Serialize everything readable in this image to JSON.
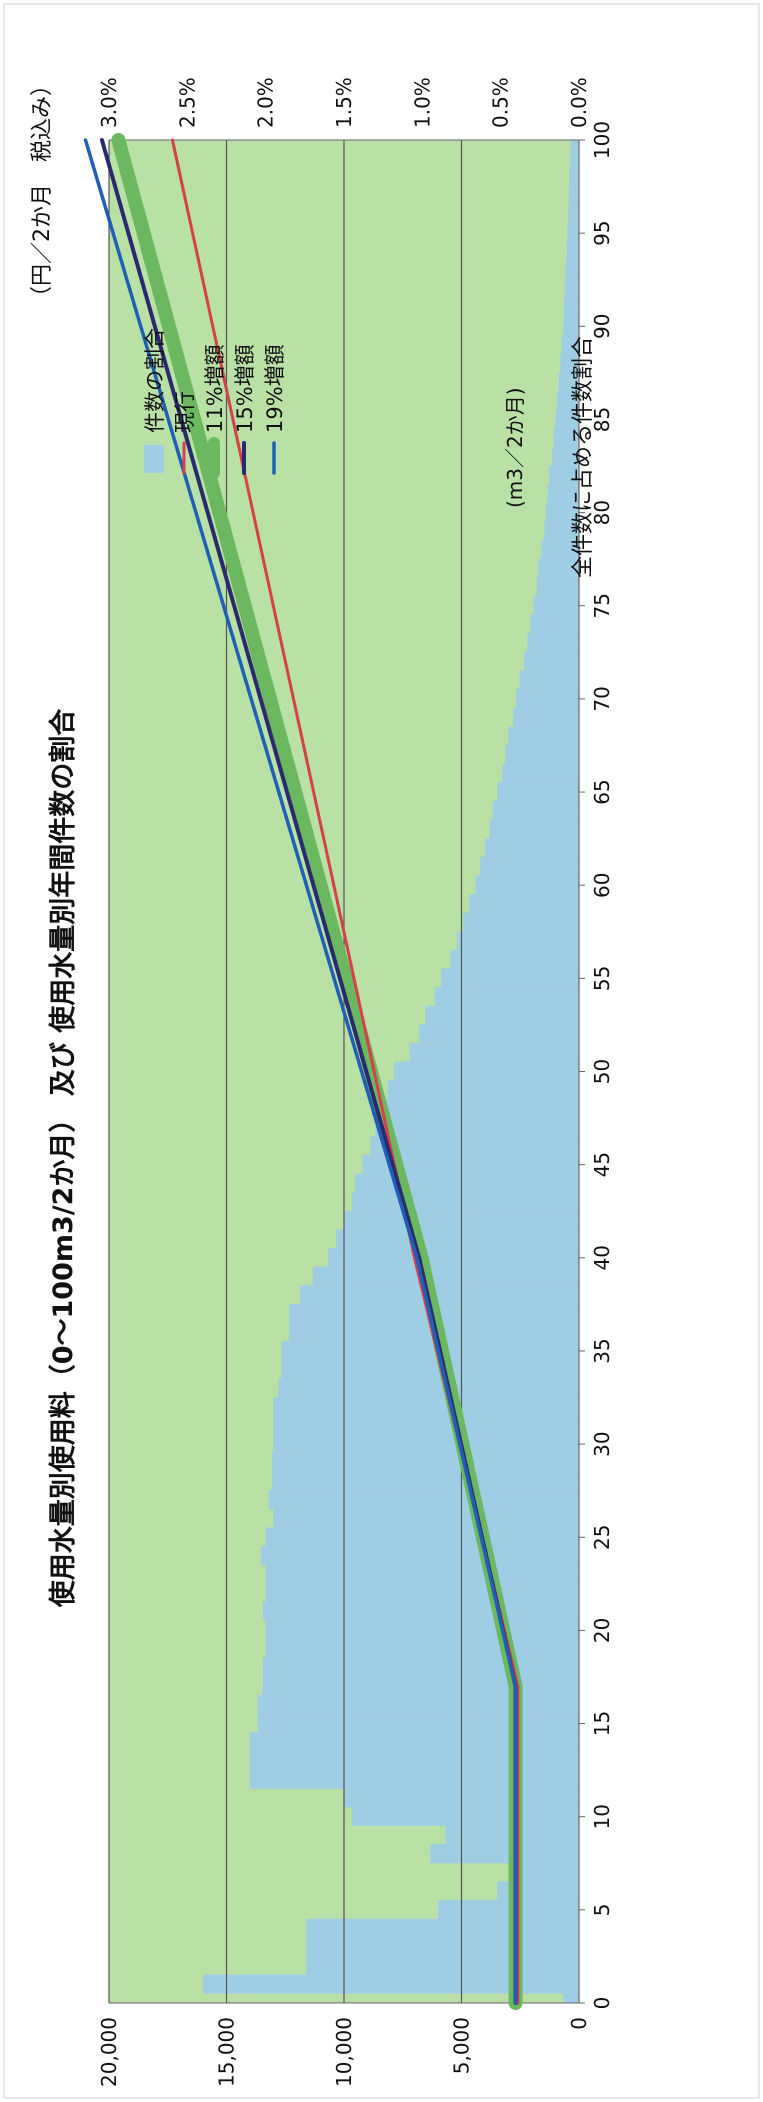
{
  "chart_data": {
    "type": "line",
    "title": "使用水量別使用料（0～100m3/2か月） 及び 使用水量別年間件数の割合",
    "xlabel": "(m3／2か月)",
    "ylabel_left": "（円／2か月　税込み）",
    "ylabel_right": "全件数に占める件数割合",
    "xlim": [
      0,
      100
    ],
    "ylim_left": [
      0,
      20000
    ],
    "ylim_right": [
      0,
      3.0
    ],
    "x_ticks": [
      "0",
      "5",
      "10",
      "15",
      "20",
      "25",
      "30",
      "35",
      "40",
      "45",
      "50",
      "55",
      "60",
      "65",
      "70",
      "75",
      "80",
      "85",
      "90",
      "95",
      "100"
    ],
    "y_left_ticks": [
      "0",
      "5,000",
      "10,000",
      "15,000",
      "20,000"
    ],
    "y_right_ticks": [
      "0.0%",
      "0.5%",
      "1.0%",
      "1.5%",
      "2.0%",
      "2.5%",
      "3.0%"
    ],
    "grid": true,
    "legend_position": "top-right",
    "colors": {
      "share": "#9fcde3",
      "background": "#b9e0a5",
      "current": "#d6404a",
      "inc11": "#6bb860",
      "inc15": "#2a2a6e",
      "inc19": "#1f5fb5"
    },
    "series": [
      {
        "name": "件数の割合",
        "kind": "area",
        "axis": "right",
        "x": [
          0,
          1,
          2,
          3,
          4,
          5,
          6,
          7,
          8,
          9,
          10,
          11,
          12,
          13,
          14,
          15,
          16,
          17,
          18,
          19,
          20,
          21,
          22,
          23,
          24,
          25,
          26,
          27,
          28,
          29,
          30,
          31,
          32,
          33,
          34,
          35,
          36,
          37,
          38,
          39,
          40,
          41,
          42,
          43,
          44,
          45,
          46,
          47,
          48,
          49,
          50,
          51,
          52,
          53,
          54,
          55,
          56,
          57,
          58,
          59,
          60,
          61,
          62,
          63,
          64,
          65,
          66,
          67,
          68,
          69,
          70,
          71,
          72,
          73,
          74,
          75,
          76,
          77,
          78,
          79,
          80,
          81,
          82,
          83,
          84,
          85,
          86,
          87,
          88,
          89,
          90,
          91,
          92,
          93,
          94,
          95,
          96,
          97,
          98,
          99,
          100
        ],
        "values": [
          0.1,
          2.4,
          1.74,
          1.74,
          1.74,
          0.9,
          0.52,
          0.45,
          0.95,
          0.85,
          1.45,
          1.5,
          2.1,
          2.1,
          2.1,
          2.05,
          2.05,
          2.02,
          2.02,
          2.0,
          2.0,
          2.02,
          2.0,
          2.0,
          2.03,
          2.0,
          1.95,
          1.98,
          1.96,
          1.96,
          1.95,
          1.95,
          1.95,
          1.92,
          1.9,
          1.9,
          1.85,
          1.85,
          1.78,
          1.7,
          1.6,
          1.55,
          1.5,
          1.45,
          1.43,
          1.38,
          1.33,
          1.3,
          1.28,
          1.22,
          1.18,
          1.08,
          1.02,
          0.98,
          0.92,
          0.88,
          0.82,
          0.78,
          0.74,
          0.7,
          0.66,
          0.63,
          0.6,
          0.57,
          0.55,
          0.52,
          0.49,
          0.47,
          0.45,
          0.42,
          0.4,
          0.38,
          0.35,
          0.33,
          0.31,
          0.29,
          0.27,
          0.26,
          0.24,
          0.22,
          0.21,
          0.2,
          0.19,
          0.17,
          0.16,
          0.15,
          0.14,
          0.13,
          0.12,
          0.11,
          0.1,
          0.095,
          0.09,
          0.085,
          0.08,
          0.075,
          0.07,
          0.065,
          0.06,
          0.055,
          0.05
        ]
      },
      {
        "name": "現行",
        "kind": "line",
        "axis": "left",
        "x": [
          0,
          17,
          40,
          100
        ],
        "values": [
          2600,
          2600,
          7000,
          17300
        ]
      },
      {
        "name": "11%増額",
        "kind": "line",
        "axis": "left",
        "x": [
          0,
          17,
          40,
          100
        ],
        "values": [
          2700,
          2700,
          6700,
          19600
        ]
      },
      {
        "name": "15%増額",
        "kind": "line",
        "axis": "left",
        "x": [
          0,
          17,
          40,
          100
        ],
        "values": [
          2700,
          2700,
          6800,
          20300
        ]
      },
      {
        "name": "19%増額",
        "kind": "line",
        "axis": "left",
        "x": [
          0,
          17,
          40,
          100
        ],
        "values": [
          2700,
          2700,
          6900,
          21000
        ]
      }
    ]
  }
}
